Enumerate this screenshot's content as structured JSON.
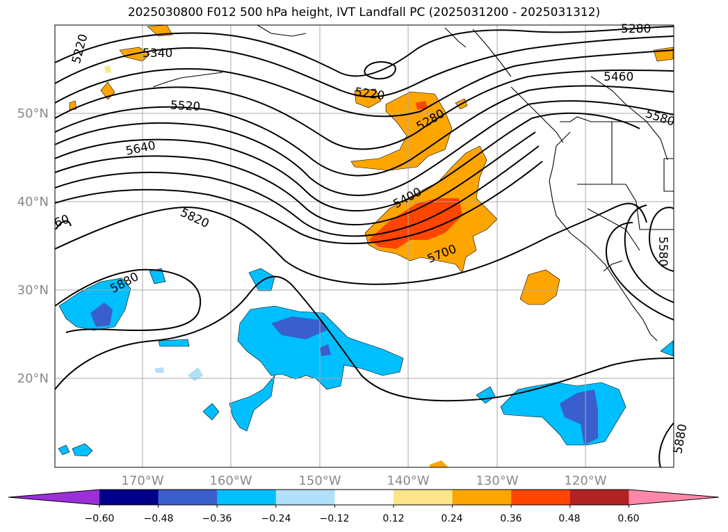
{
  "title": "2025030800 F012 500 hPa height, IVT Landfall PC (2025031200 - 2025031312)",
  "map": {
    "lon_labels": [
      "170°W",
      "160°W",
      "150°W",
      "140°W",
      "130°W",
      "120°W"
    ],
    "lat_labels": [
      "50°N",
      "40°N",
      "30°N",
      "20°N"
    ],
    "contour_labels": [
      "5220",
      "5340",
      "5520",
      "5640",
      "60",
      "5820",
      "5880",
      "5220",
      "5280",
      "5400",
      "5700",
      "5280",
      "5460",
      "5580",
      "5580",
      "5880"
    ]
  },
  "colorbar": {
    "ticks": [
      "−0.60",
      "−0.48",
      "−0.36",
      "−0.24",
      "−0.12",
      "0.12",
      "0.24",
      "0.36",
      "0.48",
      "0.60"
    ],
    "colors": [
      "#9b30d9",
      "#00008b",
      "#3a5fcd",
      "#00bfff",
      "#b0e0fa",
      "#ffffff",
      "#fde68a",
      "#ffa500",
      "#ff4500",
      "#b22222",
      "#ff88aa"
    ]
  }
}
